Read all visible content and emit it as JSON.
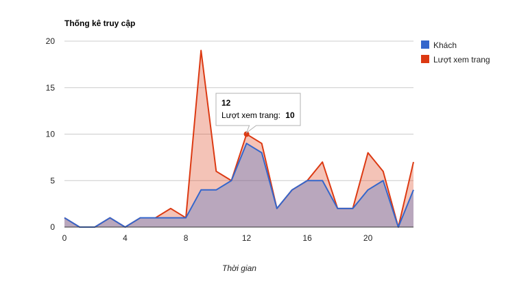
{
  "chart_data": {
    "type": "area",
    "title": "Thống kê truy cập",
    "xlabel": "Thời gian",
    "ylabel": "",
    "xlim": [
      0,
      23
    ],
    "ylim": [
      0,
      20
    ],
    "x_ticks": [
      "0",
      "4",
      "8",
      "12",
      "16",
      "20"
    ],
    "y_ticks": [
      "0",
      "5",
      "10",
      "15",
      "20"
    ],
    "x": [
      0,
      1,
      2,
      3,
      4,
      5,
      6,
      7,
      8,
      9,
      10,
      11,
      12,
      13,
      14,
      15,
      16,
      17,
      18,
      19,
      20,
      21,
      22,
      23
    ],
    "grid": true,
    "legend_position": "right",
    "series": [
      {
        "name": "Khách",
        "color": "#3366cc",
        "values": [
          1,
          0,
          0,
          1,
          0,
          1,
          1,
          1,
          1,
          4,
          4,
          5,
          9,
          8,
          2,
          4,
          5,
          5,
          2,
          2,
          4,
          5,
          0,
          4
        ]
      },
      {
        "name": "Lượt xem trang",
        "color": "#dc3912",
        "values": [
          1,
          0,
          0,
          1,
          0,
          1,
          1,
          2,
          1,
          19,
          6,
          5,
          10,
          9,
          2,
          4,
          5,
          7,
          2,
          2,
          8,
          6,
          0,
          7
        ]
      }
    ],
    "tooltip": {
      "title": "12",
      "label": "Lượt xem trang:",
      "value": "10",
      "x": 12,
      "y": 10
    }
  }
}
